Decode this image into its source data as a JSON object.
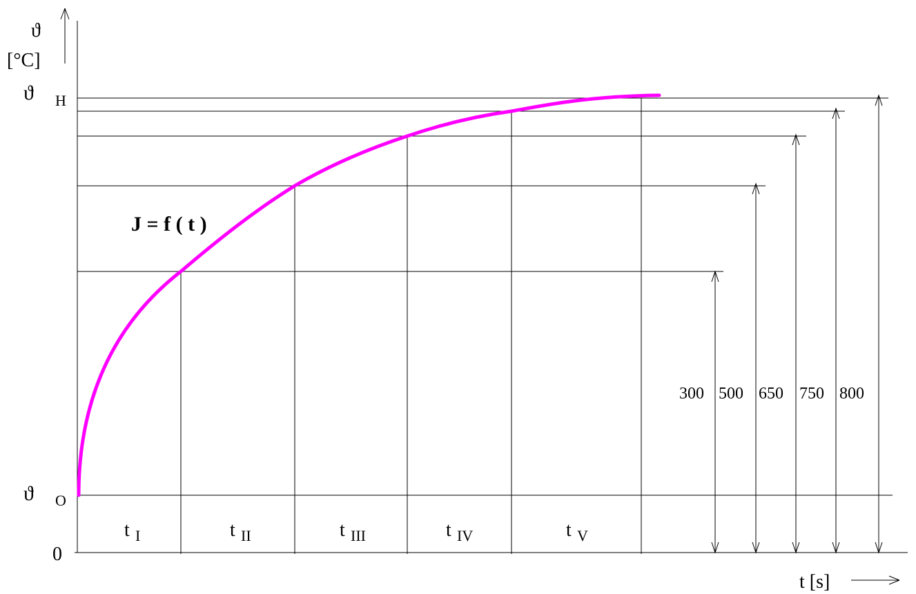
{
  "y_axis": {
    "symbol": "ϑ",
    "unit": "[°C]",
    "top_label_symbol": "ϑ",
    "top_label_sub": "H",
    "bottom_label_symbol": "ϑ",
    "bottom_label_sub": "O",
    "origin_label": "0"
  },
  "x_axis": {
    "label": "t [s]"
  },
  "curve": {
    "label": "J = f ( t )",
    "color": "#ff00ff"
  },
  "temperature_levels": [
    "300",
    "500",
    "650",
    "750",
    "800"
  ],
  "intervals": [
    {
      "t": "t",
      "sub": "I"
    },
    {
      "t": "t",
      "sub": "II"
    },
    {
      "t": "t",
      "sub": "III"
    },
    {
      "t": "t",
      "sub": "IV"
    },
    {
      "t": "t",
      "sub": "V"
    }
  ]
}
